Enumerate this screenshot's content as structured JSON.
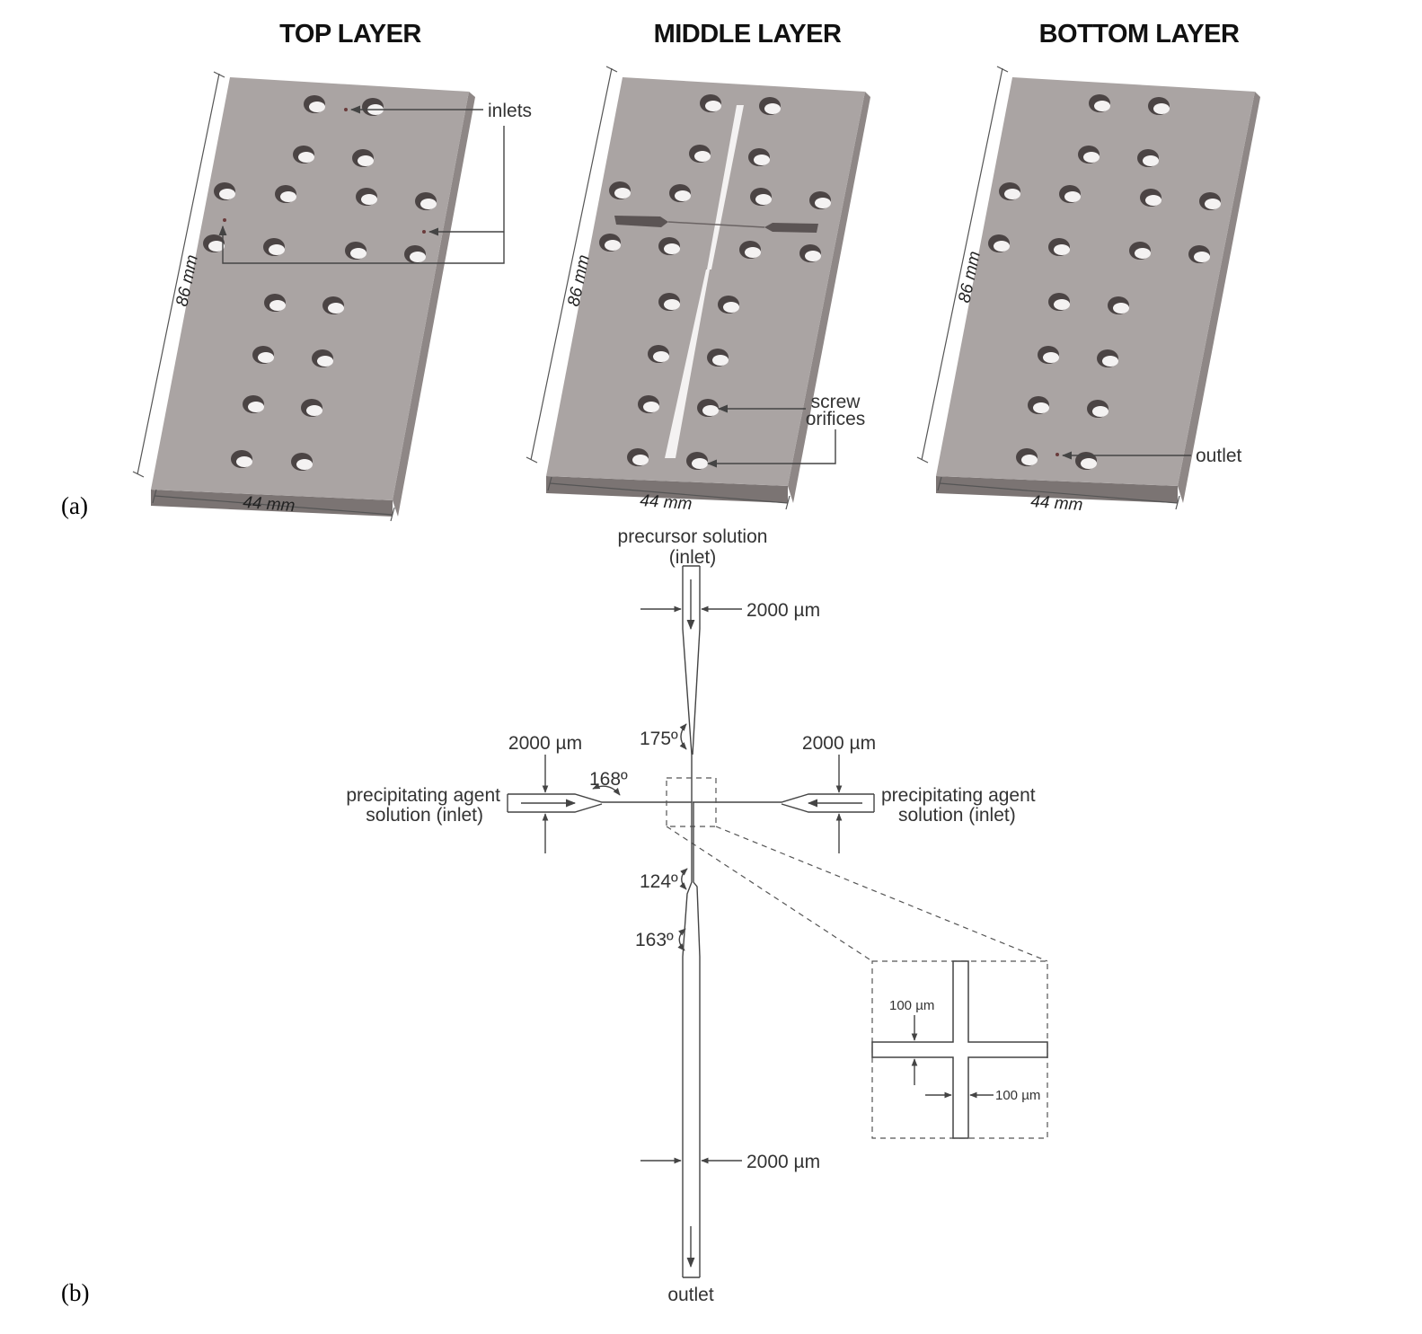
{
  "panel_a": {
    "label": "(a)",
    "layers": [
      {
        "title": "TOP LAYER",
        "length_label": "86 mm",
        "width_label": "44 mm"
      },
      {
        "title": "MIDDLE LAYER",
        "length_label": "86 mm",
        "width_label": "44 mm"
      },
      {
        "title": "BOTTOM LAYER",
        "length_label": "86 mm",
        "width_label": "44 mm"
      }
    ],
    "annotations": {
      "inlets": "inlets",
      "screw_line1": "screw",
      "screw_line2": "orifices",
      "outlet": "outlet"
    }
  },
  "panel_b": {
    "label": "(b)",
    "precursor_line1": "precursor solution",
    "precursor_line2": "(inlet)",
    "precip_left_line1": "precipitating agent",
    "precip_left_line2": "solution (inlet)",
    "precip_right_line1": "precipitating agent",
    "precip_right_line2": "solution (inlet)",
    "outlet": "outlet",
    "width_top": "2000 µm",
    "width_left": "2000 µm",
    "width_right": "2000 µm",
    "width_bottom": "2000 µm",
    "angle_175": "175º",
    "angle_168": "168º",
    "angle_124": "124º",
    "angle_163": "163º",
    "inset_width_a": "100 µm",
    "inset_width_b": "100 µm"
  }
}
